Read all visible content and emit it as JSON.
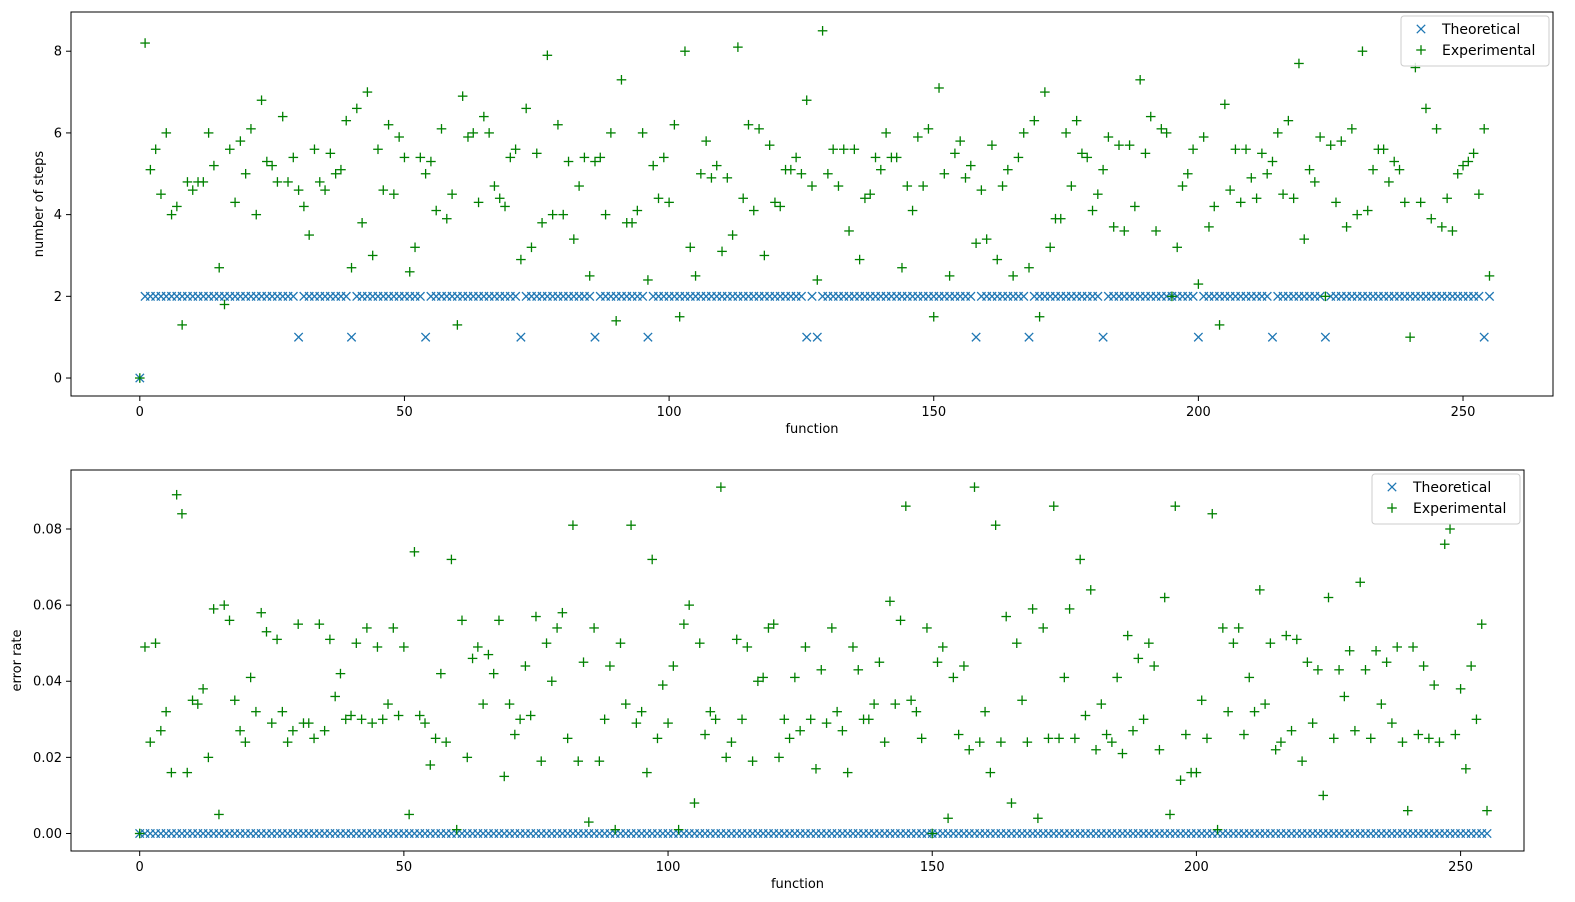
{
  "colors": {
    "theoretical": "#1f77b4",
    "experimental": "#008000"
  },
  "chart_data": [
    {
      "type": "scatter",
      "xlabel": "function",
      "ylabel": "number of steps",
      "xlim": [
        -13,
        267
      ],
      "ylim": [
        -0.44,
        8.96
      ],
      "xticks": [
        0,
        50,
        100,
        150,
        200,
        250
      ],
      "yticks": [
        0,
        2,
        4,
        6,
        8
      ],
      "ytick_decimals": 0,
      "legend_position": "top-right",
      "grid": false,
      "series": [
        {
          "name": "Theoretical",
          "marker": "x",
          "color": "#1f77b4",
          "x_range": [
            0,
            255
          ],
          "default_y": 2,
          "overrides": {
            "0": 0,
            "30": 1,
            "40": 1,
            "54": 1,
            "72": 1,
            "86": 1,
            "96": 1,
            "126": 1,
            "128": 1,
            "158": 1,
            "168": 1,
            "182": 1,
            "200": 1,
            "214": 1,
            "224": 1,
            "254": 1
          }
        },
        {
          "name": "Experimental",
          "marker": "+",
          "color": "#008000",
          "x_range": [
            0,
            255
          ],
          "y": [
            0,
            8.2,
            5.1,
            5.6,
            4.5,
            6.0,
            4.0,
            4.2,
            1.3,
            4.8,
            4.6,
            4.8,
            4.8,
            6.0,
            5.2,
            2.7,
            1.8,
            5.6,
            4.3,
            5.8,
            5.0,
            6.1,
            4.0,
            6.8,
            5.3,
            5.2,
            4.8,
            6.4,
            4.8,
            5.4,
            4.6,
            4.2,
            3.5,
            5.6,
            4.8,
            4.6,
            5.5,
            5.0,
            5.1,
            6.3,
            2.7,
            6.6,
            3.8,
            7.0,
            3.0,
            5.6,
            4.6,
            6.2,
            4.5,
            5.9,
            5.4,
            2.6,
            3.2,
            5.4,
            5.0,
            5.3,
            4.1,
            6.1,
            3.9,
            4.5,
            1.3,
            6.9,
            5.9,
            6.0,
            4.3,
            6.4,
            6.0,
            4.7,
            4.4,
            4.2,
            5.4,
            5.6,
            2.9,
            6.6,
            3.2,
            5.5,
            3.8,
            7.9,
            4.0,
            6.2,
            4.0,
            5.3,
            3.4,
            4.7,
            5.4,
            2.5,
            5.3,
            5.4,
            4.0,
            6.0,
            1.4,
            7.3,
            3.8,
            3.8,
            4.1,
            6.0,
            2.4,
            5.2,
            4.4,
            5.4,
            4.3,
            6.2,
            1.5,
            8.0,
            3.2,
            2.5,
            5.0,
            5.8,
            4.9,
            5.2,
            3.1,
            4.9,
            3.5,
            8.1,
            4.4,
            6.2,
            4.1,
            6.1,
            3.0,
            5.7,
            4.3,
            4.2,
            5.1,
            5.1,
            5.4,
            5.0,
            6.8,
            4.7,
            2.4,
            8.5,
            5.0,
            5.6,
            4.7,
            5.6,
            3.6,
            5.6,
            2.9,
            4.4,
            4.5,
            5.4,
            5.1,
            6.0,
            5.4,
            5.4,
            2.7,
            4.7,
            4.1,
            5.9,
            4.7,
            6.1,
            1.5,
            7.1,
            5.0,
            2.5,
            5.5,
            5.8,
            4.9,
            5.2,
            3.3,
            4.6,
            3.4,
            5.7,
            2.9,
            4.7,
            5.1,
            2.5,
            5.4,
            6.0,
            2.7,
            6.3,
            1.5,
            7.0,
            3.2,
            3.9,
            3.9,
            6.0,
            4.7,
            6.3,
            5.5,
            5.4,
            4.1,
            4.5,
            5.1,
            5.9,
            3.7,
            5.7,
            3.6,
            5.7,
            4.2,
            7.3,
            5.5,
            6.4,
            3.6,
            6.1,
            6.0,
            2.0,
            3.2,
            4.7,
            5.0,
            5.6,
            2.3,
            5.9,
            3.7,
            4.2,
            1.3,
            6.7,
            4.6,
            5.6,
            4.3,
            5.6,
            4.9,
            4.4,
            5.5,
            5.0,
            5.3,
            6.0,
            4.5,
            6.3,
            4.4,
            7.7,
            3.4,
            5.1,
            4.8,
            5.9,
            2.0,
            5.7,
            4.3,
            5.8,
            3.7,
            6.1,
            4.0,
            8.0,
            4.1,
            5.1,
            5.6,
            5.6,
            4.8,
            5.3,
            5.1,
            4.3,
            1.0,
            7.6,
            4.3,
            6.6,
            3.9,
            6.1,
            3.7,
            4.4,
            3.6,
            5.0,
            5.2,
            5.3,
            5.5,
            4.5,
            6.1,
            2.5
          ]
        }
      ]
    },
    {
      "type": "scatter",
      "xlabel": "function",
      "ylabel": "error rate",
      "xlim": [
        -13,
        262
      ],
      "ylim": [
        -0.0046,
        0.0955
      ],
      "xticks": [
        0,
        50,
        100,
        150,
        200,
        250
      ],
      "yticks": [
        0.0,
        0.02,
        0.04,
        0.06,
        0.08
      ],
      "ytick_decimals": 2,
      "legend_position": "top-right",
      "grid": false,
      "series": [
        {
          "name": "Theoretical",
          "marker": "x",
          "color": "#1f77b4",
          "x_range": [
            0,
            255
          ],
          "default_y": 0,
          "overrides": {}
        },
        {
          "name": "Experimental",
          "marker": "+",
          "color": "#008000",
          "x_range": [
            0,
            255
          ],
          "y": [
            0,
            0.049,
            0.024,
            0.05,
            0.027,
            0.032,
            0.016,
            0.089,
            0.084,
            0.016,
            0.035,
            0.034,
            0.038,
            0.02,
            0.059,
            0.005,
            0.06,
            0.056,
            0.035,
            0.027,
            0.024,
            0.041,
            0.032,
            0.058,
            0.053,
            0.029,
            0.051,
            0.032,
            0.024,
            0.027,
            0.055,
            0.029,
            0.029,
            0.025,
            0.055,
            0.027,
            0.051,
            0.036,
            0.042,
            0.03,
            0.031,
            0.05,
            0.03,
            0.054,
            0.029,
            0.049,
            0.03,
            0.034,
            0.054,
            0.031,
            0.049,
            0.005,
            0.074,
            0.031,
            0.029,
            0.018,
            0.025,
            0.042,
            0.024,
            0.072,
            0.001,
            0.056,
            0.02,
            0.046,
            0.049,
            0.034,
            0.047,
            0.042,
            0.056,
            0.015,
            0.034,
            0.026,
            0.03,
            0.044,
            0.031,
            0.057,
            0.019,
            0.05,
            0.04,
            0.054,
            0.058,
            0.025,
            0.081,
            0.019,
            0.045,
            0.003,
            0.054,
            0.019,
            0.03,
            0.044,
            0.001,
            0.05,
            0.034,
            0.081,
            0.029,
            0.032,
            0.016,
            0.072,
            0.025,
            0.039,
            0.029,
            0.044,
            0.001,
            0.055,
            0.06,
            0.008,
            0.05,
            0.026,
            0.032,
            0.03,
            0.091,
            0.02,
            0.024,
            0.051,
            0.03,
            0.049,
            0.019,
            0.04,
            0.041,
            0.054,
            0.055,
            0.02,
            0.03,
            0.025,
            0.041,
            0.027,
            0.049,
            0.03,
            0.017,
            0.043,
            0.029,
            0.054,
            0.032,
            0.027,
            0.016,
            0.049,
            0.043,
            0.03,
            0.03,
            0.034,
            0.045,
            0.024,
            0.061,
            0.034,
            0.056,
            0.086,
            0.035,
            0.032,
            0.025,
            0.054,
            0,
            0.045,
            0.049,
            0.004,
            0.041,
            0.026,
            0.044,
            0.022,
            0.091,
            0.024,
            0.032,
            0.016,
            0.081,
            0.024,
            0.057,
            0.008,
            0.05,
            0.035,
            0.024,
            0.059,
            0.004,
            0.054,
            0.025,
            0.086,
            0.025,
            0.041,
            0.059,
            0.025,
            0.072,
            0.031,
            0.064,
            0.022,
            0.034,
            0.026,
            0.024,
            0.041,
            0.021,
            0.052,
            0.027,
            0.046,
            0.03,
            0.05,
            0.044,
            0.022,
            0.062,
            0.005,
            0.086,
            0.014,
            0.026,
            0.016,
            0.016,
            0.035,
            0.025,
            0.084,
            0.001,
            0.054,
            0.032,
            0.05,
            0.054,
            0.026,
            0.041,
            0.032,
            0.064,
            0.034,
            0.05,
            0.022,
            0.024,
            0.052,
            0.027,
            0.051,
            0.019,
            0.045,
            0.029,
            0.043,
            0.01,
            0.062,
            0.025,
            0.043,
            0.036,
            0.048,
            0.027,
            0.066,
            0.043,
            0.025,
            0.048,
            0.034,
            0.045,
            0.029,
            0.049,
            0.024,
            0.006,
            0.049,
            0.026,
            0.044,
            0.025,
            0.039,
            0.024,
            0.076,
            0.08,
            0.026,
            0.038,
            0.017,
            0.044,
            0.03,
            0.055,
            0.006
          ]
        }
      ]
    }
  ]
}
